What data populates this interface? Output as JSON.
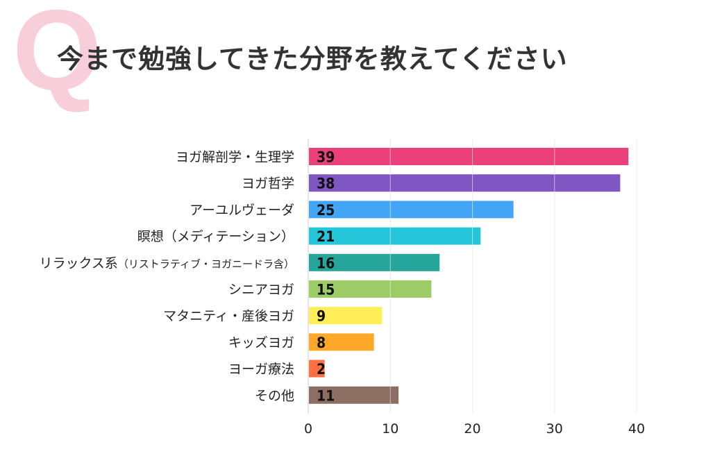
{
  "header": {
    "q_mark": "Q",
    "title": "今まで勉強してきた分野を教えてください"
  },
  "chart_data": {
    "type": "bar",
    "orientation": "horizontal",
    "title": "今まで勉強してきた分野を教えてください",
    "categories": [
      {
        "main": "ヨガ解剖学・生理学",
        "sub": ""
      },
      {
        "main": "ヨガ哲学",
        "sub": ""
      },
      {
        "main": "アーユルヴェーダ",
        "sub": ""
      },
      {
        "main": "瞑想（メディテーション）",
        "sub": ""
      },
      {
        "main": "リラックス系",
        "sub": "（リストラティブ・ヨガニードラ含）"
      },
      {
        "main": "シニアヨガ",
        "sub": ""
      },
      {
        "main": "マタニティ・産後ヨガ",
        "sub": ""
      },
      {
        "main": "キッズヨガ",
        "sub": ""
      },
      {
        "main": "ヨーガ療法",
        "sub": ""
      },
      {
        "main": "その他",
        "sub": ""
      }
    ],
    "values": [
      39,
      38,
      25,
      21,
      16,
      15,
      9,
      8,
      2,
      11
    ],
    "colors": [
      "#ec407a",
      "#7e57c2",
      "#42a5f5",
      "#26c6da",
      "#26a69a",
      "#9ccc65",
      "#ffee58",
      "#ffa726",
      "#ff7043",
      "#8d6e63"
    ],
    "xlim": [
      0,
      40
    ],
    "xticks": [
      "0",
      "10",
      "20",
      "30",
      "40"
    ],
    "grid": true,
    "data_labels": true
  }
}
